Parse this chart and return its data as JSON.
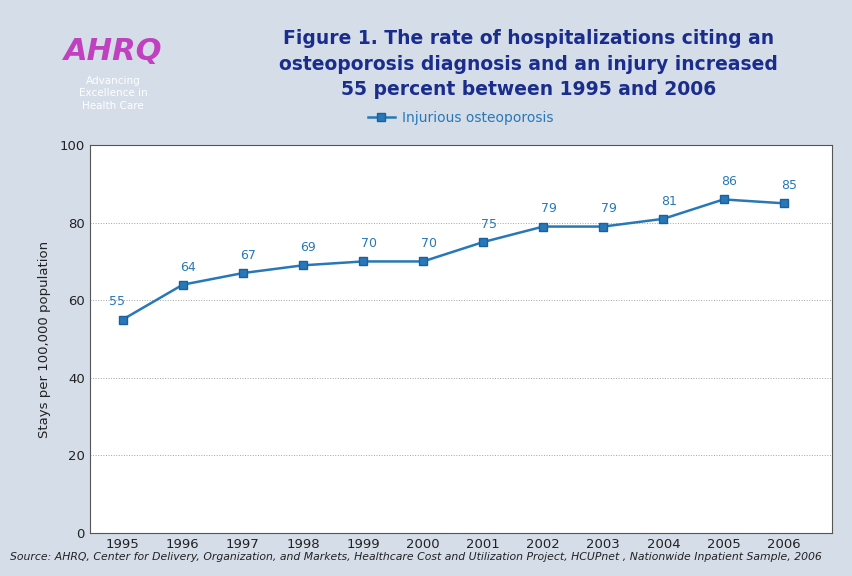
{
  "years": [
    1995,
    1996,
    1997,
    1998,
    1999,
    2000,
    2001,
    2002,
    2003,
    2004,
    2005,
    2006
  ],
  "values": [
    55,
    64,
    67,
    69,
    70,
    70,
    75,
    79,
    79,
    81,
    86,
    85
  ],
  "line_color": "#2878b8",
  "marker_color": "#1a5fa0",
  "marker_face": "#2878b8",
  "legend_label": "Injurious osteoporosis",
  "ylabel": "Stays per 100,000 population",
  "ylim": [
    0,
    100
  ],
  "yticks": [
    0,
    20,
    40,
    60,
    80,
    100
  ],
  "title_text": "Figure 1. The rate of hospitalizations citing an\nosteoporosis diagnosis and an injury increased\n55 percent between 1995 and 2006",
  "title_color": "#1a2d8c",
  "source_text": "Source: AHRQ, Center for Delivery, Organization, and Markets, Healthcare Cost and Utilization Project, HCUPnet , Nationwide Inpatient Sample, 2006",
  "bg_color": "#d5dde8",
  "plot_bg_color": "#ffffff",
  "header_bg_color": "#dde5ef",
  "sep_color": "#1f3d8c",
  "sep_color2": "#4472a8",
  "annotation_color": "#2878b8",
  "annotation_fontsize": 9,
  "logo_box_color": "#4a9fd4",
  "logo_text_color": "#ffffff",
  "border_color": "#7a9abf"
}
